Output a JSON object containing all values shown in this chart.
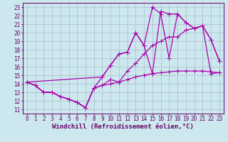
{
  "xlabel": "Windchill (Refroidissement éolien,°C)",
  "bg_color": "#cce8ee",
  "line_color": "#aa00aa",
  "grid_color": "#aabbcc",
  "xlim": [
    -0.5,
    23.5
  ],
  "ylim": [
    10.5,
    23.5
  ],
  "xticks": [
    0,
    1,
    2,
    3,
    4,
    5,
    6,
    7,
    8,
    9,
    10,
    11,
    12,
    13,
    14,
    15,
    16,
    17,
    18,
    19,
    20,
    21,
    22,
    23
  ],
  "yticks": [
    11,
    12,
    13,
    14,
    15,
    16,
    17,
    18,
    19,
    20,
    21,
    22,
    23
  ],
  "line1_x": [
    0,
    1,
    2,
    3,
    4,
    5,
    6,
    7,
    8,
    9,
    10,
    11,
    12,
    13,
    14,
    15,
    16,
    17,
    18,
    19,
    20,
    21,
    22,
    23
  ],
  "line1_y": [
    14.2,
    13.8,
    13.0,
    13.0,
    12.5,
    12.2,
    11.8,
    11.2,
    13.5,
    13.8,
    14.0,
    14.2,
    14.5,
    14.8,
    15.0,
    15.2,
    15.3,
    15.4,
    15.5,
    15.5,
    15.5,
    15.5,
    15.4,
    15.3
  ],
  "line2_x": [
    0,
    1,
    2,
    3,
    4,
    5,
    6,
    7,
    8,
    9,
    10,
    11,
    12,
    13,
    14,
    15,
    16,
    17,
    18,
    19,
    20,
    21,
    22,
    23
  ],
  "line2_y": [
    14.2,
    13.8,
    13.0,
    13.0,
    12.5,
    12.2,
    11.8,
    11.2,
    13.5,
    13.8,
    14.5,
    14.2,
    15.5,
    16.4,
    17.5,
    18.5,
    19.0,
    19.5,
    19.5,
    20.3,
    20.5,
    20.8,
    15.2,
    15.3
  ],
  "line3_x": [
    0,
    1,
    2,
    3,
    4,
    5,
    6,
    7,
    8,
    9,
    10,
    11,
    12,
    13,
    14,
    15,
    16,
    17,
    18,
    19,
    20,
    21,
    22,
    23
  ],
  "line3_y": [
    14.2,
    13.8,
    13.0,
    13.0,
    12.5,
    12.2,
    11.8,
    11.2,
    13.5,
    14.8,
    16.2,
    17.5,
    17.7,
    20.0,
    18.5,
    15.2,
    22.5,
    22.2,
    22.2,
    21.2,
    20.5,
    20.8,
    19.2,
    16.7
  ],
  "line4_x": [
    0,
    9,
    10,
    11,
    12,
    13,
    14,
    15,
    16,
    17,
    18,
    19,
    20,
    21,
    22,
    23
  ],
  "line4_y": [
    14.2,
    14.8,
    16.2,
    17.5,
    17.7,
    20.0,
    18.5,
    23.0,
    22.2,
    17.0,
    22.2,
    21.2,
    20.5,
    20.8,
    19.2,
    16.7
  ],
  "marker_size": 4,
  "line_width": 0.9,
  "tick_fontsize": 5.5,
  "label_fontsize": 6.5
}
